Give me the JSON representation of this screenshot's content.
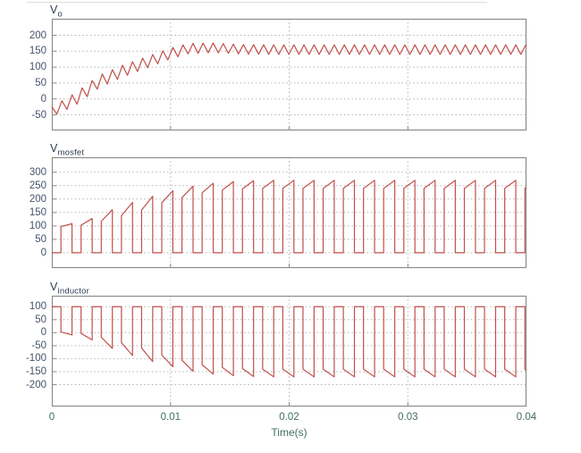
{
  "figure": {
    "xlabel": "Time(s)",
    "xlim": [
      0,
      0.04
    ],
    "xtick_times": [
      0,
      0.01,
      0.02,
      0.03,
      0.04
    ],
    "xtick_labels": [
      "0",
      "0.01",
      "0.02",
      "0.03",
      "0.04"
    ],
    "xgrid_times": [
      0.01,
      0.02,
      0.03
    ],
    "grid": "dotted",
    "colors": {
      "trace": "#c0504a",
      "grid": "#b3b3b3",
      "box": "#8c8c8c",
      "y_tick_label": "#46536b",
      "x_tick_label": "#3f6e5c",
      "title": "#2c3a52",
      "background": "#ffffff"
    }
  },
  "chart_data": [
    {
      "type": "line",
      "name": "vo",
      "title": {
        "prefix": "V",
        "sub": "o"
      },
      "ylim": [
        -99,
        252
      ],
      "yticks": [
        200,
        150,
        100,
        50,
        0,
        -50
      ],
      "ytick_labels": [
        "200",
        "150",
        "100",
        "50",
        "0",
        "-50"
      ],
      "waveform": {
        "kind": "triangle",
        "description": "Boost converter output voltage: triangular ripple rising from -40 V to steady state 155 V (ripple 140-170 V), slight overshoot near t=0.012 s",
        "tri_period_s": 0.00085,
        "mean_envelope": [
          [
            0,
            -40
          ],
          [
            0.002,
            0
          ],
          [
            0.004,
            55
          ],
          [
            0.006,
            88
          ],
          [
            0.008,
            115
          ],
          [
            0.01,
            143
          ],
          [
            0.0115,
            158
          ],
          [
            0.0135,
            161
          ],
          [
            0.016,
            156
          ],
          [
            0.019,
            155
          ],
          [
            0.04,
            155
          ]
        ],
        "amplitude_envelope": [
          [
            0,
            15
          ],
          [
            0.002,
            20
          ],
          [
            0.008,
            18
          ],
          [
            0.014,
            15
          ],
          [
            0.04,
            15
          ]
        ],
        "steady_state": {
          "mean": 155,
          "ripple_pp": 30
        }
      }
    },
    {
      "type": "line",
      "name": "vmosfet",
      "title": {
        "prefix": "V",
        "sub": "mosfet"
      },
      "ylim": [
        -57,
        356
      ],
      "yticks": [
        300,
        250,
        200,
        150,
        100,
        50,
        0
      ],
      "ytick_labels": [
        "300",
        "250",
        "200",
        "150",
        "100",
        "50",
        "0"
      ],
      "waveform": {
        "kind": "pulse",
        "description": "MOSFET voltage: 0 V while conducting, ramped pulses while off; pulse tops grow from ~100 V to steady state 240-270 V",
        "period_s": 0.0017,
        "low_fraction": 0.45,
        "low_value": 0,
        "pulse_start_envelope": [
          [
            0,
            95
          ],
          [
            0.0025,
            103
          ],
          [
            0.004,
            115
          ],
          [
            0.006,
            140
          ],
          [
            0.0075,
            158
          ],
          [
            0.009,
            183
          ],
          [
            0.0105,
            200
          ],
          [
            0.012,
            218
          ],
          [
            0.0135,
            230
          ],
          [
            0.015,
            236
          ],
          [
            0.017,
            240
          ],
          [
            0.04,
            240
          ]
        ],
        "pulse_end_envelope": [
          [
            0,
            100
          ],
          [
            0.0025,
            128
          ],
          [
            0.004,
            158
          ],
          [
            0.006,
            190
          ],
          [
            0.0075,
            210
          ],
          [
            0.009,
            228
          ],
          [
            0.0105,
            245
          ],
          [
            0.012,
            256
          ],
          [
            0.0135,
            263
          ],
          [
            0.015,
            267
          ],
          [
            0.017,
            270
          ],
          [
            0.04,
            270
          ]
        ],
        "steady_state": {
          "low": 0,
          "high_ramp": [
            240,
            270
          ]
        }
      }
    },
    {
      "type": "line",
      "name": "vinductor",
      "title": {
        "prefix": "V",
        "sub": "inductor"
      },
      "ylim": [
        -284,
        142
      ],
      "yticks": [
        100,
        50,
        0,
        -50,
        -100,
        -150,
        -200
      ],
      "ytick_labels": [
        "100",
        "50",
        "0",
        "-50",
        "-100",
        "-150",
        "-200"
      ],
      "waveform": {
        "kind": "pulse_inverted",
        "description": "Inductor voltage: +100 V during charge interval, negative dips growing from ~0 V to steady state -140 to -170 V",
        "period_s": 0.0017,
        "high_fraction": 0.45,
        "high_value": 100,
        "dip_start_envelope": [
          [
            0,
            5
          ],
          [
            0.0025,
            -3
          ],
          [
            0.004,
            -15
          ],
          [
            0.006,
            -40
          ],
          [
            0.0075,
            -58
          ],
          [
            0.009,
            -83
          ],
          [
            0.0105,
            -100
          ],
          [
            0.012,
            -118
          ],
          [
            0.0135,
            -130
          ],
          [
            0.015,
            -136
          ],
          [
            0.017,
            -140
          ],
          [
            0.04,
            -140
          ]
        ],
        "dip_end_envelope": [
          [
            0,
            0
          ],
          [
            0.0025,
            -28
          ],
          [
            0.004,
            -58
          ],
          [
            0.006,
            -90
          ],
          [
            0.0075,
            -110
          ],
          [
            0.009,
            -128
          ],
          [
            0.0105,
            -145
          ],
          [
            0.012,
            -156
          ],
          [
            0.0135,
            -163
          ],
          [
            0.015,
            -167
          ],
          [
            0.017,
            -170
          ],
          [
            0.04,
            -170
          ]
        ],
        "steady_state": {
          "high": 100,
          "dip_ramp": [
            -140,
            -170
          ]
        }
      }
    }
  ]
}
